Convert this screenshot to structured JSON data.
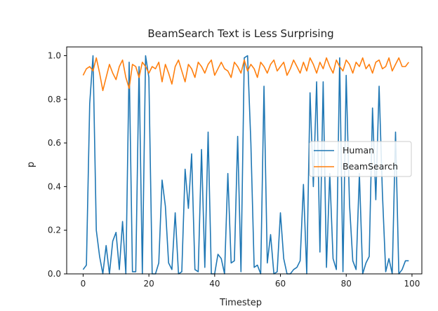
{
  "chart_data": {
    "type": "line",
    "title": "BeamSearch Text is Less Surprising",
    "xlabel": "Timestep",
    "ylabel": "p",
    "xlim": [
      -5,
      103
    ],
    "ylim": [
      0,
      1.04
    ],
    "x_ticks": [
      0,
      20,
      40,
      60,
      80,
      100
    ],
    "y_ticks": [
      0.0,
      0.2,
      0.4,
      0.6,
      0.8,
      1.0
    ],
    "x_tick_labels": [
      "0",
      "20",
      "40",
      "60",
      "80",
      "100"
    ],
    "y_tick_labels": [
      "0.0",
      "0.2",
      "0.4",
      "0.6",
      "0.8",
      "1.0"
    ],
    "grid": false,
    "legend": {
      "position": "center-right"
    },
    "x": [
      0,
      1,
      2,
      3,
      4,
      5,
      6,
      7,
      8,
      9,
      10,
      11,
      12,
      13,
      14,
      15,
      16,
      17,
      18,
      19,
      20,
      21,
      22,
      23,
      24,
      25,
      26,
      27,
      28,
      29,
      30,
      31,
      32,
      33,
      34,
      35,
      36,
      37,
      38,
      39,
      40,
      41,
      42,
      43,
      44,
      45,
      46,
      47,
      48,
      49,
      50,
      51,
      52,
      53,
      54,
      55,
      56,
      57,
      58,
      59,
      60,
      61,
      62,
      63,
      64,
      65,
      66,
      67,
      68,
      69,
      70,
      71,
      72,
      73,
      74,
      75,
      76,
      77,
      78,
      79,
      80,
      81,
      82,
      83,
      84,
      85,
      86,
      87,
      88,
      89,
      90,
      91,
      92,
      93,
      94,
      95,
      96,
      97,
      98,
      99
    ],
    "series": [
      {
        "name": "Human",
        "color": "#1f77b4",
        "values": [
          0.02,
          0.04,
          0.78,
          1.0,
          0.2,
          0.08,
          0.0,
          0.13,
          0.0,
          0.15,
          0.19,
          0.02,
          0.24,
          0.0,
          0.97,
          0.01,
          0.01,
          0.95,
          0.0,
          1.0,
          0.9,
          0.0,
          0.0,
          0.05,
          0.43,
          0.31,
          0.05,
          0.02,
          0.28,
          0.0,
          0.01,
          0.48,
          0.3,
          0.55,
          0.02,
          0.01,
          0.57,
          0.03,
          0.65,
          0.0,
          0.0,
          0.09,
          0.07,
          0.0,
          0.46,
          0.05,
          0.06,
          0.63,
          0.01,
          0.99,
          1.0,
          0.6,
          0.03,
          0.04,
          0.0,
          0.86,
          0.05,
          0.18,
          0.0,
          0.01,
          0.28,
          0.07,
          0.0,
          0.0,
          0.02,
          0.03,
          0.06,
          0.41,
          0.0,
          0.83,
          0.4,
          0.88,
          0.1,
          0.88,
          0.03,
          0.46,
          0.07,
          0.02,
          0.99,
          0.01,
          0.91,
          0.32,
          0.06,
          0.02,
          0.46,
          0.0,
          0.05,
          0.08,
          0.76,
          0.34,
          0.86,
          0.37,
          0.01,
          0.07,
          0.0,
          0.65,
          0.0,
          0.02,
          0.06,
          0.06
        ]
      },
      {
        "name": "BeamSearch",
        "color": "#ff7f0e",
        "values": [
          0.91,
          0.94,
          0.95,
          0.93,
          0.99,
          0.92,
          0.84,
          0.9,
          0.96,
          0.92,
          0.89,
          0.95,
          0.98,
          0.9,
          0.85,
          0.96,
          0.95,
          0.9,
          0.97,
          0.95,
          0.92,
          0.95,
          0.94,
          0.97,
          0.88,
          0.96,
          0.92,
          0.87,
          0.95,
          0.98,
          0.93,
          0.88,
          0.96,
          0.94,
          0.9,
          0.97,
          0.95,
          0.92,
          0.96,
          0.98,
          0.91,
          0.94,
          0.97,
          0.94,
          0.93,
          0.9,
          0.97,
          0.95,
          0.92,
          0.98,
          0.93,
          0.96,
          0.94,
          0.9,
          0.97,
          0.95,
          0.92,
          0.96,
          0.98,
          0.93,
          0.95,
          0.97,
          0.91,
          0.94,
          0.98,
          0.95,
          0.92,
          0.97,
          0.93,
          0.99,
          0.96,
          0.92,
          0.97,
          0.94,
          0.99,
          0.95,
          0.92,
          0.98,
          0.95,
          0.93,
          0.98,
          0.96,
          0.92,
          0.97,
          0.95,
          0.99,
          0.94,
          0.96,
          0.92,
          0.97,
          0.98,
          0.94,
          0.95,
          0.99,
          0.93,
          0.96,
          0.99,
          0.95,
          0.95,
          0.97
        ]
      }
    ]
  }
}
